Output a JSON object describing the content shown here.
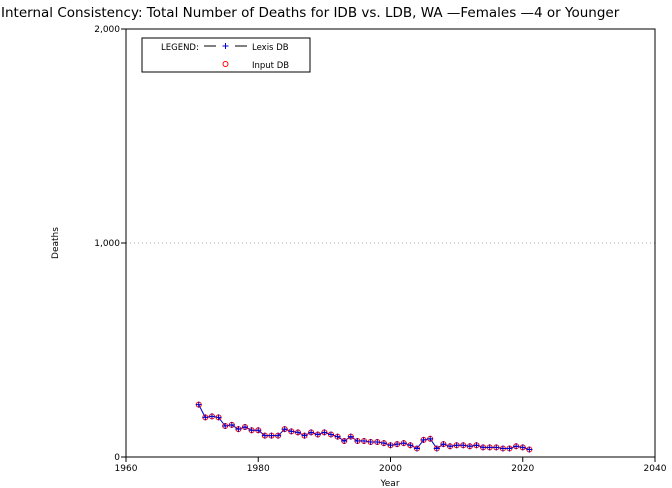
{
  "chart_data": {
    "type": "line",
    "title": "Internal Consistency: Total Number of Deaths for IDB vs. LDB, WA —Females —4 or Younger",
    "xlabel": "Year",
    "ylabel": "Deaths",
    "xlim": [
      1960,
      2040
    ],
    "ylim": [
      0,
      2000
    ],
    "x_ticks": [
      1960,
      1980,
      2000,
      2020,
      2040
    ],
    "y_ticks": [
      0,
      1000,
      2000
    ],
    "x_tick_labels": [
      "1960",
      "1980",
      "2000",
      "2020",
      "2040"
    ],
    "y_tick_labels": [
      "0",
      "1,000",
      "2,000"
    ],
    "grid": "horizontal dotted at y ticks",
    "legend": {
      "placement": "top-left",
      "heading": "LEGEND:",
      "entries": [
        "Lexis DB",
        "Input DB"
      ]
    },
    "x": [
      1971,
      1972,
      1973,
      1974,
      1975,
      1976,
      1977,
      1978,
      1979,
      1980,
      1981,
      1982,
      1983,
      1984,
      1985,
      1986,
      1987,
      1988,
      1989,
      1990,
      1991,
      1992,
      1993,
      1994,
      1995,
      1996,
      1997,
      1998,
      1999,
      2000,
      2001,
      2002,
      2003,
      2004,
      2005,
      2006,
      2007,
      2008,
      2009,
      2010,
      2011,
      2012,
      2013,
      2014,
      2015,
      2016,
      2017,
      2018,
      2019,
      2020,
      2021
    ],
    "series": [
      {
        "name": "Lexis DB",
        "color": "#0000cc",
        "marker": "plus",
        "values": [
          245,
          185,
          190,
          185,
          145,
          150,
          130,
          140,
          125,
          125,
          100,
          100,
          100,
          130,
          120,
          115,
          100,
          115,
          105,
          115,
          105,
          95,
          75,
          95,
          75,
          75,
          70,
          70,
          65,
          55,
          60,
          65,
          55,
          40,
          80,
          85,
          40,
          60,
          50,
          55,
          55,
          50,
          55,
          45,
          45,
          45,
          40,
          40,
          50,
          45,
          35
        ]
      },
      {
        "name": "Input DB",
        "color": "#ff0000",
        "marker": "circle",
        "values": [
          245,
          185,
          190,
          185,
          145,
          150,
          130,
          140,
          125,
          125,
          100,
          100,
          100,
          130,
          120,
          115,
          100,
          115,
          105,
          115,
          105,
          95,
          75,
          95,
          75,
          75,
          70,
          70,
          65,
          55,
          60,
          65,
          55,
          40,
          80,
          85,
          40,
          60,
          50,
          55,
          55,
          50,
          55,
          45,
          45,
          45,
          40,
          40,
          50,
          45,
          35
        ]
      }
    ]
  }
}
